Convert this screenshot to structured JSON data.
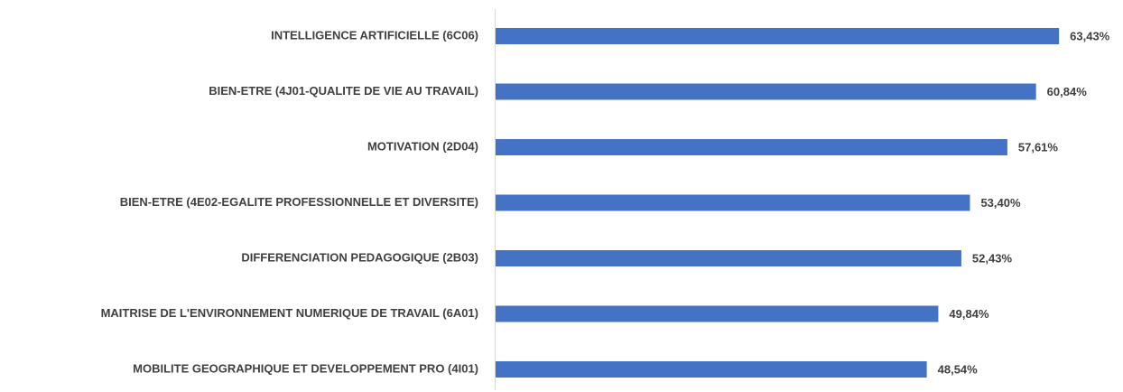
{
  "chart_data": {
    "type": "barh",
    "categories": [
      "INTELLIGENCE ARTIFICIELLE (6C06)",
      "BIEN-ETRE (4J01-QUALITE DE VIE AU TRAVAIL)",
      "MOTIVATION (2D04)",
      "BIEN-ETRE (4E02-EGALITE PROFESSIONNELLE ET DIVERSITE)",
      "DIFFERENCIATION PEDAGOGIQUE (2B03)",
      "MAITRISE DE L'ENVIRONNEMENT NUMERIQUE DE TRAVAIL (6A01)",
      "MOBILITE GEOGRAPHIQUE ET DEVELOPPEMENT PRO (4I01)"
    ],
    "values": [
      63.43,
      60.84,
      57.61,
      53.4,
      52.43,
      49.84,
      48.54
    ],
    "value_labels": [
      "63,43%",
      "60,84%",
      "57,61%",
      "53,40%",
      "52,43%",
      "49,84%",
      "48,54%"
    ],
    "color": "#4472c4"
  }
}
